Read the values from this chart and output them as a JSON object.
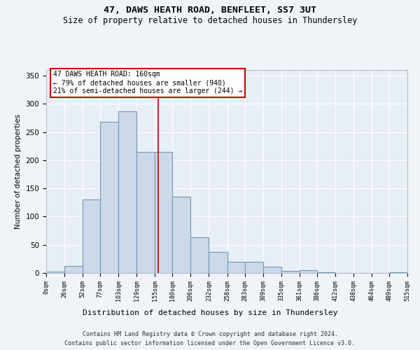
{
  "title1": "47, DAWS HEATH ROAD, BENFLEET, SS7 3UT",
  "title2": "Size of property relative to detached houses in Thundersley",
  "xlabel": "Distribution of detached houses by size in Thundersley",
  "ylabel": "Number of detached properties",
  "footer1": "Contains HM Land Registry data © Crown copyright and database right 2024.",
  "footer2": "Contains public sector information licensed under the Open Government Licence v3.0.",
  "annotation_title": "47 DAWS HEATH ROAD: 160sqm",
  "annotation_line2": "← 79% of detached houses are smaller (940)",
  "annotation_line3": "21% of semi-detached houses are larger (244) →",
  "property_size": 160,
  "bin_edges": [
    0,
    26,
    52,
    77,
    103,
    129,
    155,
    180,
    206,
    232,
    258,
    283,
    309,
    335,
    361,
    386,
    412,
    438,
    464,
    489,
    515
  ],
  "bar_heights": [
    2,
    12,
    130,
    268,
    287,
    215,
    215,
    135,
    63,
    37,
    20,
    20,
    11,
    4,
    5,
    1,
    0,
    0,
    0,
    1
  ],
  "bar_color": "#ccd9e8",
  "bar_edge_color": "#7097b8",
  "highlight_color": "#cc0000",
  "bg_color": "#e8eef5",
  "grid_color": "#ffffff",
  "fig_color": "#f0f4f8",
  "ylim": [
    0,
    360
  ],
  "yticks": [
    0,
    50,
    100,
    150,
    200,
    250,
    300,
    350
  ]
}
